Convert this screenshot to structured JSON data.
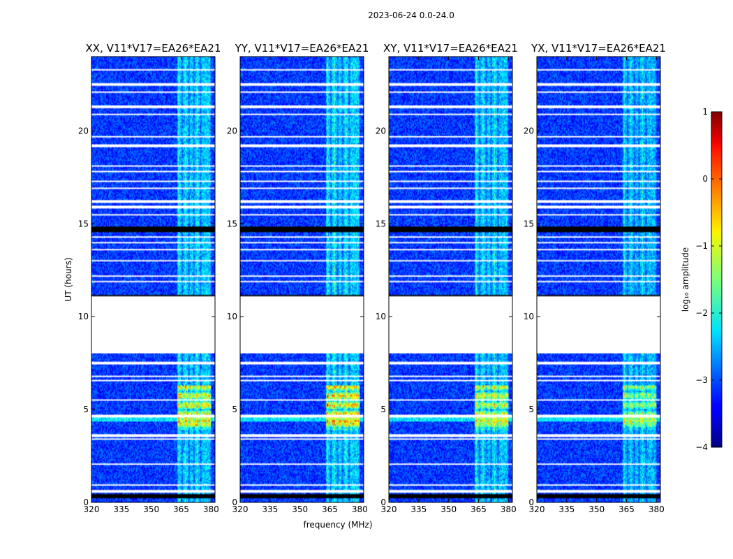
{
  "figure": {
    "suptitle": "2023-06-24 0.0-24.0"
  },
  "chart_data": {
    "type": "heatmap",
    "suptitle": "2023-06-24 0.0-24.0",
    "xlabel": "frequency (MHz)",
    "ylabel": "UT (hours)",
    "xlim": [
      320,
      382
    ],
    "ylim": [
      0,
      24
    ],
    "xticks": [
      320,
      335,
      350,
      365,
      380
    ],
    "yticks": [
      0,
      5,
      10,
      15,
      20
    ],
    "panels": [
      {
        "title": "XX, V11*V17=EA26*EA21",
        "rfi_strength": 1.0
      },
      {
        "title": "YY, V11*V17=EA26*EA21",
        "rfi_strength": 1.05
      },
      {
        "title": "XY, V11*V17=EA26*EA21",
        "rfi_strength": 0.95
      },
      {
        "title": "YX, V11*V17=EA26*EA21",
        "rfi_strength": 0.85
      }
    ],
    "colorbar": {
      "label": "log₁₀ amplitude",
      "range": [
        -4,
        1
      ],
      "ticks": [
        1,
        0,
        -1,
        -2,
        -3,
        -4
      ],
      "colormap": "jet"
    },
    "background_level": -3.1,
    "rfi_band_mhz": [
      363,
      380
    ],
    "strong_rfi_hours": [
      [
        3.9,
        6.3
      ]
    ],
    "flagged_gaps_hours": [
      [
        8.0,
        11.1
      ]
    ],
    "thick_black_rows_hours": [
      [
        0.2,
        0.45
      ],
      [
        14.55,
        14.85
      ],
      [
        11.05,
        11.15
      ]
    ],
    "white_rows_hours": [
      0.6,
      0.95,
      2.05,
      3.4,
      3.6,
      4.65,
      5.5,
      6.55,
      6.8,
      7.5,
      11.9,
      12.2,
      13.0,
      13.6,
      14.0,
      14.3,
      15.5,
      15.9,
      16.2,
      16.9,
      17.3,
      17.8,
      18.1,
      19.2,
      19.7,
      20.9,
      21.3,
      22.1,
      22.5,
      23.3
    ]
  }
}
